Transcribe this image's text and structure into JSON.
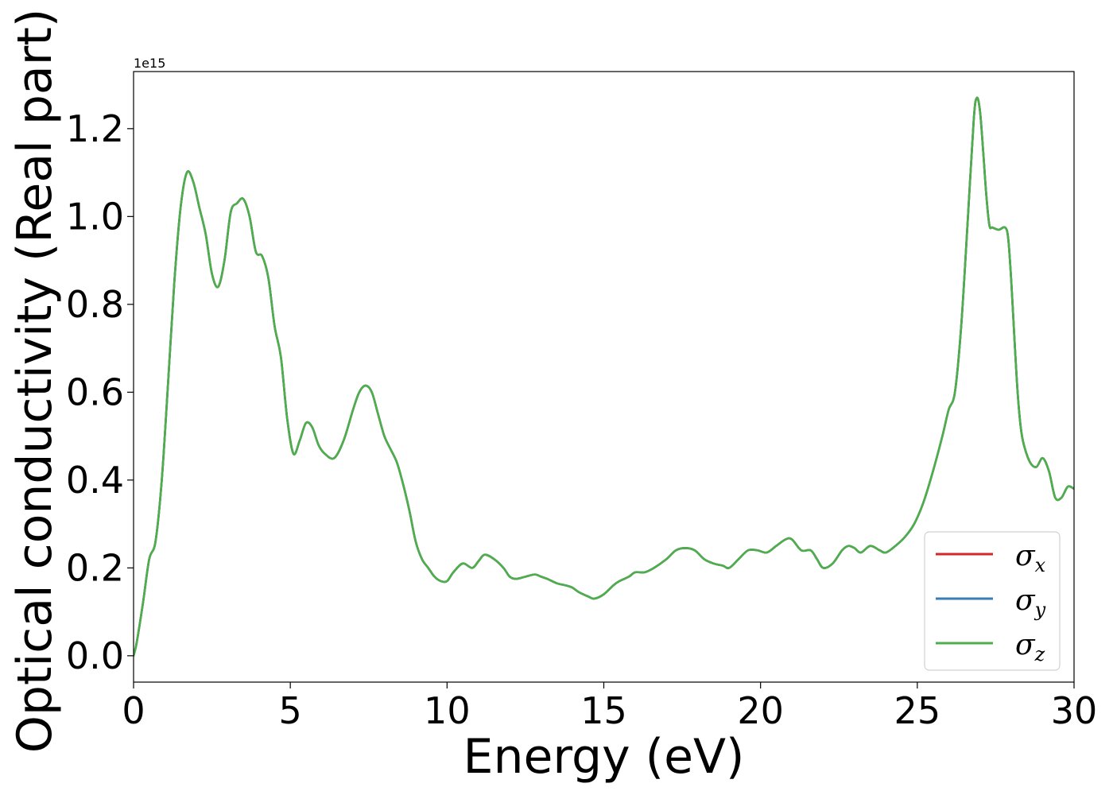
{
  "chart_data": {
    "type": "line",
    "xlabel": "Energy (eV)",
    "ylabel": "Optical conductivity (Real part)",
    "y_offset_text": "1e15",
    "xlim": [
      0,
      30
    ],
    "ylim": [
      -0.06,
      1.33
    ],
    "y_scale_factor": 1000000000000000.0,
    "xticks": [
      0,
      5,
      10,
      15,
      20,
      25,
      30
    ],
    "xtick_labels": [
      "0",
      "5",
      "10",
      "15",
      "20",
      "25",
      "30"
    ],
    "yticks": [
      0.0,
      0.2,
      0.4,
      0.6,
      0.8,
      1.0,
      1.2
    ],
    "ytick_labels": [
      "0.0",
      "0.2",
      "0.4",
      "0.6",
      "0.8",
      "1.0",
      "1.2"
    ],
    "grid": false,
    "legend_position": "lower-right",
    "x": [
      0.0,
      0.1,
      0.3,
      0.5,
      0.7,
      0.9,
      1.1,
      1.3,
      1.5,
      1.7,
      1.9,
      2.1,
      2.3,
      2.5,
      2.7,
      2.9,
      3.1,
      3.3,
      3.5,
      3.7,
      3.9,
      4.1,
      4.3,
      4.5,
      4.7,
      4.9,
      5.1,
      5.3,
      5.5,
      5.7,
      5.9,
      6.1,
      6.4,
      6.7,
      7.0,
      7.2,
      7.4,
      7.6,
      7.8,
      8.0,
      8.2,
      8.4,
      8.6,
      8.8,
      9.0,
      9.2,
      9.4,
      9.6,
      9.8,
      10.0,
      10.2,
      10.5,
      10.8,
      11.0,
      11.2,
      11.5,
      11.8,
      12.0,
      12.2,
      12.5,
      12.8,
      13.0,
      13.2,
      13.5,
      13.8,
      14.0,
      14.2,
      14.5,
      14.7,
      15.0,
      15.3,
      15.5,
      15.8,
      16.0,
      16.3,
      16.6,
      17.0,
      17.3,
      17.6,
      17.9,
      18.2,
      18.5,
      18.8,
      19.0,
      19.3,
      19.6,
      19.9,
      20.2,
      20.5,
      20.8,
      21.0,
      21.3,
      21.6,
      21.8,
      22.0,
      22.3,
      22.6,
      22.8,
      23.0,
      23.2,
      23.5,
      23.8,
      24.0,
      24.3,
      24.6,
      24.9,
      25.2,
      25.5,
      25.8,
      26.0,
      26.2,
      26.4,
      26.6,
      26.8,
      26.9,
      27.0,
      27.1,
      27.2,
      27.3,
      27.4,
      27.6,
      27.8,
      27.9,
      28.0,
      28.1,
      28.2,
      28.3,
      28.4,
      28.6,
      28.8,
      29.0,
      29.2,
      29.4,
      29.6,
      29.8,
      30.0
    ],
    "series": [
      {
        "name": "σx",
        "name_base": "σ",
        "name_sub": "x",
        "color": "#d62728",
        "values": [
          0.0,
          0.03,
          0.12,
          0.22,
          0.26,
          0.4,
          0.62,
          0.85,
          1.02,
          1.1,
          1.08,
          1.02,
          0.96,
          0.87,
          0.84,
          0.9,
          1.01,
          1.03,
          1.04,
          1.0,
          0.92,
          0.91,
          0.86,
          0.75,
          0.68,
          0.54,
          0.46,
          0.49,
          0.53,
          0.52,
          0.48,
          0.46,
          0.45,
          0.49,
          0.56,
          0.6,
          0.615,
          0.6,
          0.55,
          0.5,
          0.47,
          0.44,
          0.39,
          0.33,
          0.26,
          0.22,
          0.2,
          0.18,
          0.17,
          0.17,
          0.19,
          0.21,
          0.2,
          0.215,
          0.23,
          0.22,
          0.2,
          0.18,
          0.175,
          0.18,
          0.185,
          0.18,
          0.175,
          0.165,
          0.16,
          0.155,
          0.145,
          0.135,
          0.13,
          0.14,
          0.16,
          0.17,
          0.18,
          0.19,
          0.19,
          0.2,
          0.22,
          0.24,
          0.245,
          0.24,
          0.22,
          0.21,
          0.205,
          0.2,
          0.22,
          0.24,
          0.24,
          0.235,
          0.25,
          0.265,
          0.265,
          0.24,
          0.24,
          0.22,
          0.2,
          0.21,
          0.24,
          0.25,
          0.245,
          0.235,
          0.25,
          0.24,
          0.235,
          0.25,
          0.27,
          0.3,
          0.35,
          0.42,
          0.5,
          0.56,
          0.6,
          0.75,
          0.98,
          1.22,
          1.27,
          1.24,
          1.15,
          1.05,
          0.98,
          0.975,
          0.97,
          0.975,
          0.95,
          0.85,
          0.72,
          0.6,
          0.52,
          0.48,
          0.44,
          0.43,
          0.45,
          0.42,
          0.36,
          0.36,
          0.385,
          0.38
        ]
      },
      {
        "name": "σy",
        "name_base": "σ",
        "name_sub": "y",
        "color": "#377eb8",
        "values": [
          0.0,
          0.03,
          0.12,
          0.22,
          0.26,
          0.4,
          0.62,
          0.85,
          1.02,
          1.1,
          1.08,
          1.02,
          0.96,
          0.87,
          0.84,
          0.9,
          1.01,
          1.03,
          1.04,
          1.0,
          0.92,
          0.91,
          0.86,
          0.75,
          0.68,
          0.54,
          0.46,
          0.49,
          0.53,
          0.52,
          0.48,
          0.46,
          0.45,
          0.49,
          0.56,
          0.6,
          0.615,
          0.6,
          0.55,
          0.5,
          0.47,
          0.44,
          0.39,
          0.33,
          0.26,
          0.22,
          0.2,
          0.18,
          0.17,
          0.17,
          0.19,
          0.21,
          0.2,
          0.215,
          0.23,
          0.22,
          0.2,
          0.18,
          0.175,
          0.18,
          0.185,
          0.18,
          0.175,
          0.165,
          0.16,
          0.155,
          0.145,
          0.135,
          0.13,
          0.14,
          0.16,
          0.17,
          0.18,
          0.19,
          0.19,
          0.2,
          0.22,
          0.24,
          0.245,
          0.24,
          0.22,
          0.21,
          0.205,
          0.2,
          0.22,
          0.24,
          0.24,
          0.235,
          0.25,
          0.265,
          0.265,
          0.24,
          0.24,
          0.22,
          0.2,
          0.21,
          0.24,
          0.25,
          0.245,
          0.235,
          0.25,
          0.24,
          0.235,
          0.25,
          0.27,
          0.3,
          0.35,
          0.42,
          0.5,
          0.56,
          0.6,
          0.75,
          0.98,
          1.22,
          1.27,
          1.24,
          1.15,
          1.05,
          0.98,
          0.975,
          0.97,
          0.975,
          0.95,
          0.85,
          0.72,
          0.6,
          0.52,
          0.48,
          0.44,
          0.43,
          0.45,
          0.42,
          0.36,
          0.36,
          0.385,
          0.38
        ]
      },
      {
        "name": "σz",
        "name_base": "σ",
        "name_sub": "z",
        "color": "#4daf4a",
        "values": [
          0.0,
          0.03,
          0.12,
          0.22,
          0.26,
          0.4,
          0.62,
          0.85,
          1.02,
          1.1,
          1.08,
          1.02,
          0.96,
          0.87,
          0.84,
          0.9,
          1.01,
          1.03,
          1.04,
          1.0,
          0.92,
          0.91,
          0.86,
          0.75,
          0.68,
          0.54,
          0.46,
          0.49,
          0.53,
          0.52,
          0.48,
          0.46,
          0.45,
          0.49,
          0.56,
          0.6,
          0.615,
          0.6,
          0.55,
          0.5,
          0.47,
          0.44,
          0.39,
          0.33,
          0.26,
          0.22,
          0.2,
          0.18,
          0.17,
          0.17,
          0.19,
          0.21,
          0.2,
          0.215,
          0.23,
          0.22,
          0.2,
          0.18,
          0.175,
          0.18,
          0.185,
          0.18,
          0.175,
          0.165,
          0.16,
          0.155,
          0.145,
          0.135,
          0.13,
          0.14,
          0.16,
          0.17,
          0.18,
          0.19,
          0.19,
          0.2,
          0.22,
          0.24,
          0.245,
          0.24,
          0.22,
          0.21,
          0.205,
          0.2,
          0.22,
          0.24,
          0.24,
          0.235,
          0.25,
          0.265,
          0.265,
          0.24,
          0.24,
          0.22,
          0.2,
          0.21,
          0.24,
          0.25,
          0.245,
          0.235,
          0.25,
          0.24,
          0.235,
          0.25,
          0.27,
          0.3,
          0.35,
          0.42,
          0.5,
          0.56,
          0.6,
          0.75,
          0.98,
          1.22,
          1.27,
          1.24,
          1.15,
          1.05,
          0.98,
          0.975,
          0.97,
          0.975,
          0.95,
          0.85,
          0.72,
          0.6,
          0.52,
          0.48,
          0.44,
          0.43,
          0.45,
          0.42,
          0.36,
          0.36,
          0.385,
          0.38
        ]
      }
    ]
  }
}
